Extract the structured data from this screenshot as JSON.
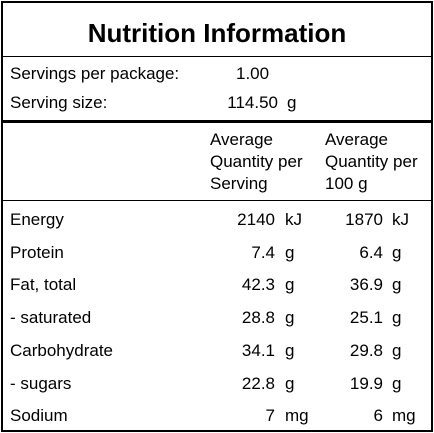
{
  "title": "Nutrition Information",
  "servings_per_package": {
    "label": "Servings per package:",
    "value": "1.00"
  },
  "serving_size": {
    "label": "Serving size:",
    "value": "114.50",
    "unit": "g"
  },
  "columns": {
    "per_serving": [
      "Average",
      "Quantity per",
      "Serving"
    ],
    "per_100g": [
      "Average",
      "Quantity per",
      "100 g"
    ]
  },
  "rows": [
    {
      "name": "Energy",
      "serving": "2140",
      "serving_unit": "kJ",
      "per100": "1870",
      "per100_unit": "kJ"
    },
    {
      "name": "Protein",
      "serving": "7.4",
      "serving_unit": "g",
      "per100": "6.4",
      "per100_unit": "g"
    },
    {
      "name": "Fat, total",
      "serving": "42.3",
      "serving_unit": "g",
      "per100": "36.9",
      "per100_unit": "g"
    },
    {
      "name": "- saturated",
      "serving": "28.8",
      "serving_unit": "g",
      "per100": "25.1",
      "per100_unit": "g"
    },
    {
      "name": "Carbohydrate",
      "serving": "34.1",
      "serving_unit": "g",
      "per100": "29.8",
      "per100_unit": "g"
    },
    {
      "name": "- sugars",
      "serving": "22.8",
      "serving_unit": "g",
      "per100": "19.9",
      "per100_unit": "g"
    },
    {
      "name": "Sodium",
      "serving": "7",
      "serving_unit": "mg",
      "per100": "6",
      "per100_unit": "mg"
    }
  ]
}
